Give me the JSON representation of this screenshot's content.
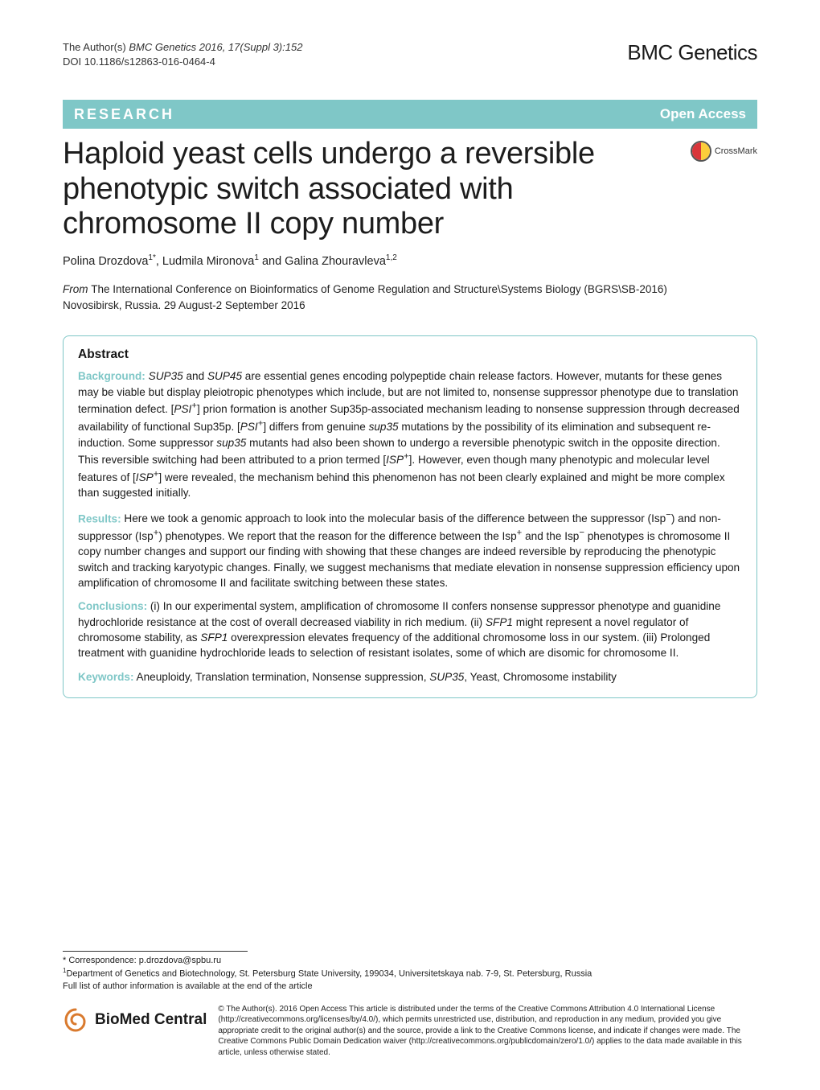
{
  "colors": {
    "accent": "#7fc7c7",
    "text": "#1a1a1a",
    "white": "#ffffff",
    "link": "#0056a3",
    "border": "#333333"
  },
  "typography": {
    "body_family": "Helvetica/Arial",
    "title_fontsize_pt": 38,
    "abstract_fontsize_pt": 13.6,
    "header_fontsize_pt": 13
  },
  "header": {
    "authors_line": "The Author(s) ",
    "journal_citation": "BMC Genetics 2016, 17(Suppl 3):152",
    "doi": "DOI 10.1186/s12863-016-0464-4",
    "journal_brand": "BMC Genetics"
  },
  "research_bar": {
    "left_label": "RESEARCH",
    "right_label": "Open Access"
  },
  "crossmark": {
    "label": "CrossMark"
  },
  "article": {
    "title": "Haploid yeast cells undergo a reversible phenotypic switch associated with chromosome II copy number",
    "authors_html": "Polina Drozdova<sup>1*</sup>, Ludmila Mironova<sup>1</sup> and Galina Zhouravleva<sup>1,2</sup>",
    "from_label": "From ",
    "conference": "The International Conference on Bioinformatics of Genome Regulation and Structure\\Systems Biology (BGRS\\SB-2016)",
    "conference_loc_date": "Novosibirsk, Russia. 29 August-2 September 2016"
  },
  "abstract": {
    "heading": "Abstract",
    "background_label": "Background:",
    "background_text": " SUP35 and SUP45 are essential genes encoding polypeptide chain release factors. However, mutants for these genes may be viable but display pleiotropic phenotypes which include, but are not limited to, nonsense suppressor phenotype due to translation termination defect. [PSI+] prion formation is another Sup35p-associated mechanism leading to nonsense suppression through decreased availability of functional Sup35p. [PSI+] differs from genuine sup35 mutations by the possibility of its elimination and subsequent re-induction. Some suppressor sup35 mutants had also been shown to undergo a reversible phenotypic switch in the opposite direction. This reversible switching had been attributed to a prion termed [ISP+]. However, even though many phenotypic and molecular level features of [ISP+] were revealed, the mechanism behind this phenomenon has not been clearly explained and might be more complex than suggested initially.",
    "results_label": "Results:",
    "results_text": " Here we took a genomic approach to look into the molecular basis of the difference between the suppressor (Isp−) and non-suppressor (Isp+) phenotypes. We report that the reason for the difference between the Isp+ and the Isp− phenotypes is chromosome II copy number changes and support our finding with showing that these changes are indeed reversible by reproducing the phenotypic switch and tracking karyotypic changes. Finally, we suggest mechanisms that mediate elevation in nonsense suppression efficiency upon amplification of chromosome II and facilitate switching between these states.",
    "conclusions_label": "Conclusions:",
    "conclusions_text": " (i) In our experimental system, amplification of chromosome II confers nonsense suppressor phenotype and guanidine hydrochloride resistance at the cost of overall decreased viability in rich medium. (ii) SFP1 might represent a novel regulator of chromosome stability, as SFP1 overexpression elevates frequency of the additional chromosome loss in our system. (iii) Prolonged treatment with guanidine hydrochloride leads to selection of resistant isolates, some of which are disomic for chromosome II.",
    "keywords_label": "Keywords:",
    "keywords_text": " Aneuploidy, Translation termination, Nonsense suppression, SUP35, Yeast, Chromosome instability"
  },
  "correspondence": {
    "line1": "* Correspondence: p.drozdova@spbu.ru",
    "line2": "1Department of Genetics and Biotechnology, St. Petersburg State University, 199034, Universitetskaya nab. 7-9, St. Petersburg, Russia",
    "line3": "Full list of author information is available at the end of the article"
  },
  "license": {
    "logo_text": "BioMed Central",
    "text": "© The Author(s). 2016 Open Access This article is distributed under the terms of the Creative Commons Attribution 4.0 International License (http://creativecommons.org/licenses/by/4.0/), which permits unrestricted use, distribution, and reproduction in any medium, provided you give appropriate credit to the original author(s) and the source, provide a link to the Creative Commons license, and indicate if changes were made. The Creative Commons Public Domain Dedication waiver (http://creativecommons.org/publicdomain/zero/1.0/) applies to the data made available in this article, unless otherwise stated."
  }
}
